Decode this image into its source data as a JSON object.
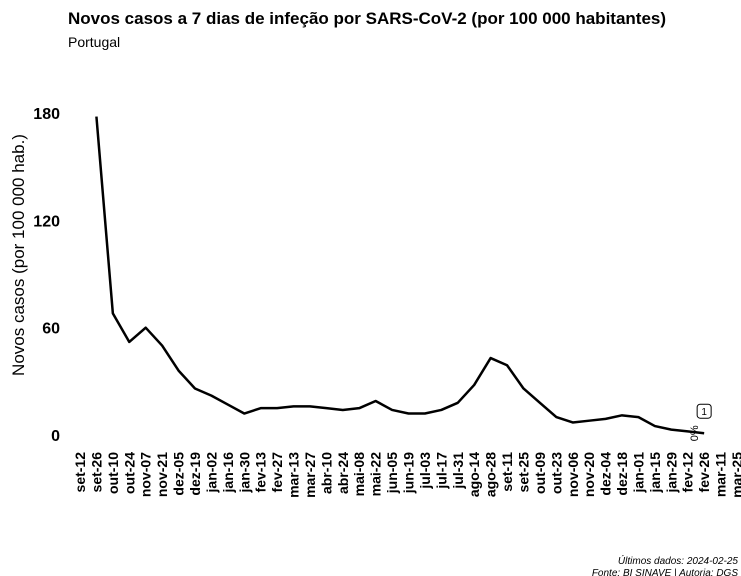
{
  "chart_data": {
    "type": "line",
    "title": "Novos casos a 7 dias de infeção por SARS-CoV-2 (por 100 000 habitantes)",
    "subtitle": "Portugal",
    "y_label": "Novos casos (por 100 000 hab.)",
    "categories": [
      "set-12",
      "set-26",
      "out-10",
      "out-24",
      "nov-07",
      "nov-21",
      "dez-05",
      "dez-19",
      "jan-02",
      "jan-16",
      "jan-30",
      "fev-13",
      "fev-27",
      "mar-13",
      "mar-27",
      "abr-10",
      "abr-24",
      "mai-08",
      "mai-22",
      "jun-05",
      "jun-19",
      "jul-03",
      "jul-17",
      "jul-31",
      "ago-14",
      "ago-28",
      "set-11",
      "set-25",
      "out-09",
      "out-23",
      "nov-06",
      "nov-20",
      "dez-04",
      "dez-18",
      "jan-01",
      "jan-15",
      "jan-29",
      "fev-12",
      "fev-26",
      "mar-11",
      "mar-25"
    ],
    "series": [
      {
        "name": "Portugal",
        "color": "#000000",
        "values": [
          null,
          178,
          68,
          52,
          60,
          50,
          36,
          26,
          22,
          17,
          12,
          15,
          15,
          16,
          16,
          15,
          14,
          15,
          19,
          14,
          12,
          12,
          14,
          18,
          28,
          43,
          39,
          26,
          18,
          10,
          7,
          8,
          9,
          11,
          10,
          5,
          3,
          2,
          1,
          null,
          null
        ]
      }
    ],
    "ylim": [
      0,
      180
    ],
    "yticks": [
      0,
      60,
      120,
      180
    ],
    "grid": false,
    "annotations": [
      "0%",
      "1"
    ],
    "caption": [
      "Últimos dados: 2024-02-25",
      "Fonte: BI SINAVE | Autoria: DGS"
    ]
  }
}
